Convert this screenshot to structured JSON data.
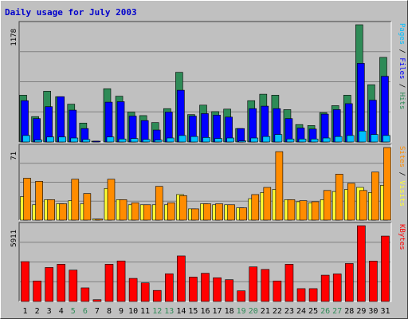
{
  "title": "Daily usage for July 2003",
  "colors": {
    "hits": "#2e8b57",
    "files": "#0000ff",
    "pages": "#00bfff",
    "visits": "#ffff33",
    "sites": "#ff8c00",
    "kbytes": "#ff0000",
    "weekday_label": "#000000",
    "weekend_label": "#2e8b57",
    "title": "#0000cc"
  },
  "chart_data": [
    {
      "type": "bar",
      "panel": "hits-files-pages",
      "ymax_label": "1178",
      "ylim": [
        0,
        1178
      ],
      "categories": [
        "1",
        "2",
        "3",
        "4",
        "5",
        "6",
        "7",
        "8",
        "9",
        "10",
        "11",
        "12",
        "13",
        "14",
        "15",
        "16",
        "17",
        "18",
        "19",
        "20",
        "21",
        "22",
        "23",
        "24",
        "25",
        "26",
        "27",
        "28",
        "29",
        "30",
        "31"
      ],
      "weekend_days": [
        "5",
        "6",
        "12",
        "13",
        "19",
        "20",
        "26",
        "27"
      ],
      "legend": [
        {
          "label": "Hits",
          "color_key": "hits"
        },
        {
          "label": "Files",
          "color_key": "files"
        },
        {
          "label": "Pages",
          "color_key": "pages"
        }
      ],
      "series": [
        {
          "name": "Hits",
          "color_key": "hits",
          "values": [
            470,
            255,
            510,
            455,
            380,
            190,
            6,
            535,
            460,
            300,
            265,
            195,
            335,
            700,
            275,
            370,
            305,
            330,
            135,
            415,
            480,
            470,
            325,
            175,
            165,
            295,
            365,
            470,
            1178,
            575,
            850
          ]
        },
        {
          "name": "Files",
          "color_key": "files",
          "values": [
            415,
            235,
            355,
            455,
            320,
            135,
            6,
            400,
            405,
            260,
            215,
            120,
            300,
            520,
            260,
            285,
            270,
            250,
            135,
            335,
            360,
            335,
            235,
            140,
            130,
            280,
            325,
            385,
            790,
            420,
            660
          ]
        },
        {
          "name": "Pages",
          "color_key": "pages",
          "values": [
            65,
            20,
            50,
            50,
            40,
            25,
            0,
            50,
            30,
            35,
            25,
            20,
            40,
            65,
            55,
            45,
            35,
            40,
            10,
            40,
            55,
            75,
            30,
            30,
            30,
            40,
            55,
            65,
            110,
            75,
            65
          ]
        }
      ]
    },
    {
      "type": "bar",
      "panel": "visits-sites",
      "ymax_label": "71",
      "ylim": [
        0,
        71
      ],
      "categories": [
        "1",
        "2",
        "3",
        "4",
        "5",
        "6",
        "7",
        "8",
        "9",
        "10",
        "11",
        "12",
        "13",
        "14",
        "15",
        "16",
        "17",
        "18",
        "19",
        "20",
        "21",
        "22",
        "23",
        "24",
        "25",
        "26",
        "27",
        "28",
        "29",
        "30",
        "31"
      ],
      "legend": [
        {
          "label": "Visits",
          "color_key": "visits"
        },
        {
          "label": "Sites",
          "color_key": "sites"
        }
      ],
      "series": [
        {
          "name": "Visits",
          "color_key": "visits",
          "values": [
            23,
            15,
            20,
            16,
            19,
            16,
            1,
            31,
            20,
            15,
            15,
            15,
            15,
            25,
            11,
            16,
            15,
            15,
            12,
            21,
            27,
            30,
            20,
            18,
            17,
            20,
            28,
            30,
            32,
            27,
            34
          ]
        },
        {
          "name": "Sites",
          "color_key": "sites",
          "values": [
            41,
            38,
            20,
            16,
            40,
            26,
            1,
            40,
            20,
            17,
            15,
            33,
            17,
            24,
            11,
            16,
            16,
            15,
            12,
            25,
            32,
            67,
            20,
            19,
            18,
            29,
            45,
            36,
            29,
            47,
            71
          ]
        }
      ]
    },
    {
      "type": "bar",
      "panel": "kbytes",
      "ymax_label": "5911",
      "ylim": [
        0,
        5911
      ],
      "categories": [
        "1",
        "2",
        "3",
        "4",
        "5",
        "6",
        "7",
        "8",
        "9",
        "10",
        "11",
        "12",
        "13",
        "14",
        "15",
        "16",
        "17",
        "18",
        "19",
        "20",
        "21",
        "22",
        "23",
        "24",
        "25",
        "26",
        "27",
        "28",
        "29",
        "30",
        "31"
      ],
      "legend": [
        {
          "label": "KBytes",
          "color_key": "kbytes"
        }
      ],
      "series": [
        {
          "name": "KBytes",
          "color_key": "kbytes",
          "values": [
            3110,
            1600,
            2650,
            2900,
            2450,
            1060,
            140,
            2900,
            3160,
            1800,
            1450,
            860,
            2160,
            3550,
            1900,
            2200,
            1850,
            1700,
            830,
            2700,
            2500,
            1600,
            2900,
            1000,
            1000,
            2050,
            2150,
            2960,
            5911,
            3150,
            5100
          ]
        }
      ]
    }
  ]
}
